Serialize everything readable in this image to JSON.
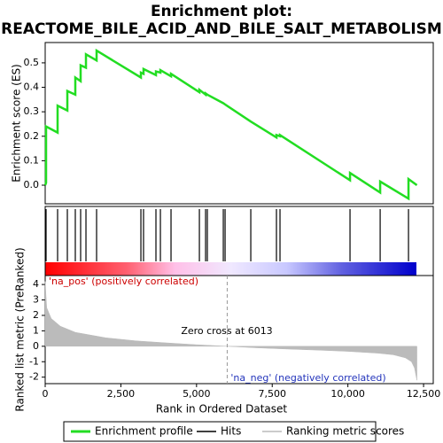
{
  "chart_data": {
    "type": "line",
    "title_lines": [
      "Enrichment plot:",
      "REACTOME_BILE_ACID_AND_BILE_SALT_METABOLISM"
    ],
    "xlabel": "Rank in Ordered Dataset",
    "ylabel": "Enrichment score (ES)",
    "y2label": "Ranked list metric (PreRanked)",
    "xlim": [
      0,
      12820
    ],
    "xticks": [
      0,
      {
        "value": 2500,
        "label": "2,500"
      },
      {
        "value": 5000,
        "label": "5,000"
      },
      {
        "value": 7500,
        "label": "7,500"
      },
      {
        "value": 10000,
        "label": "10,000"
      },
      {
        "value": 12500,
        "label": "12,500"
      }
    ],
    "ylim": [
      -0.076,
      0.583
    ],
    "yticks": [
      {
        "value": 0,
        "label": "0.0"
      },
      0.1,
      0.2,
      0.3,
      0.4,
      0.5
    ],
    "y2lim": [
      -2.42,
      4.58
    ],
    "y2ticks": [
      -2,
      -1,
      0,
      1,
      2,
      3,
      4
    ],
    "annotations": [
      "'na_pos' (positively correlated)",
      "Zero cross at 6013",
      "'na_neg' (negatively correlated)"
    ],
    "zero_cross": 6013,
    "series": [
      {
        "name": "Enrichment profile",
        "color": "#22dd22",
        "x": [
          0,
          29,
          29,
          410,
          410,
          732,
          732,
          995,
          995,
          1171,
          1171,
          1347,
          1347,
          1698,
          1698,
          3162,
          3162,
          3249,
          3249,
          3659,
          3659,
          3806,
          3806,
          4157,
          4157,
          5094,
          5094,
          5299,
          5299,
          5357,
          5884,
          5943,
          6792,
          7640,
          7640,
          7757,
          7757,
          10070,
          10070,
          11066,
          11066,
          12002,
          12002,
          12280
        ],
        "values": [
          0,
          0.01,
          0.24,
          0.215,
          0.325,
          0.305,
          0.385,
          0.37,
          0.44,
          0.425,
          0.49,
          0.48,
          0.535,
          0.51,
          0.55,
          0.44,
          0.46,
          0.455,
          0.475,
          0.45,
          0.465,
          0.46,
          0.47,
          0.445,
          0.455,
          0.38,
          0.39,
          0.37,
          0.375,
          0.37,
          0.335,
          0.33,
          0.26,
          0.195,
          0.205,
          0.2,
          0.205,
          0.02,
          0.05,
          -0.03,
          0.015,
          -0.055,
          0.025,
          0
        ]
      },
      {
        "name": "Hits",
        "color": "#000000",
        "x": [
          29,
          410,
          732,
          995,
          1171,
          1347,
          1698,
          3162,
          3249,
          3659,
          3806,
          4157,
          5094,
          5299,
          5357,
          5884,
          5943,
          6792,
          7640,
          7757,
          10070,
          11066,
          12002
        ]
      },
      {
        "name": "Ranking metric scores",
        "color": "#bbbbbb",
        "axis": "y2",
        "x": [
          0,
          50,
          200,
          500,
          1000,
          2000,
          3000,
          4000,
          5000,
          6013,
          7000,
          8000,
          9000,
          10000,
          11000,
          11500,
          11900,
          12100,
          12200,
          12280
        ],
        "values": [
          4.2,
          2.5,
          1.8,
          1.3,
          0.9,
          0.55,
          0.35,
          0.22,
          0.1,
          0,
          -0.1,
          -0.18,
          -0.25,
          -0.33,
          -0.45,
          -0.55,
          -0.75,
          -1.0,
          -1.4,
          -2.2
        ]
      }
    ]
  }
}
